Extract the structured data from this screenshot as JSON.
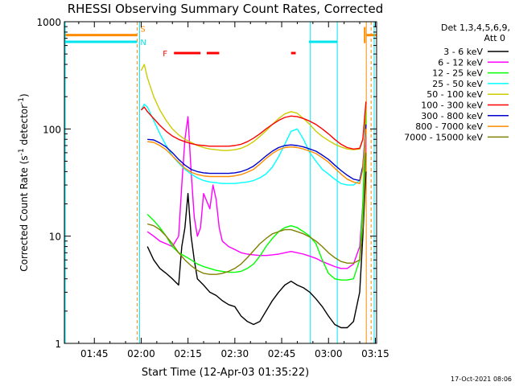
{
  "chart_data": {
    "type": "line",
    "title": "RHESSI Observing Summary Count Rates, Corrected",
    "xlabel": "Start Time (12-Apr-03 01:35:22)",
    "ylabel": "Corrected Count Rate (s",
    "ylabel_sup1": "-1",
    "ylabel_mid": " detector",
    "ylabel_sup2": "-1",
    "ylabel_end": ")",
    "yscale": "log",
    "ylim": [
      1,
      1000
    ],
    "xlim_minutes": [
      95.4,
      195.4
    ],
    "x_unit": "minutes after 00:00 UT on 12-Apr-03",
    "x_ticks": [
      {
        "value": 105,
        "label": "01:45"
      },
      {
        "value": 120,
        "label": "02:00"
      },
      {
        "value": 135,
        "label": "02:15"
      },
      {
        "value": 150,
        "label": "02:30"
      },
      {
        "value": 165,
        "label": "02:45"
      },
      {
        "value": 180,
        "label": "03:00"
      },
      {
        "value": 195,
        "label": "03:15"
      }
    ],
    "y_ticks": [
      {
        "value": 1,
        "label": "1"
      },
      {
        "value": 10,
        "label": "10"
      },
      {
        "value": 100,
        "label": "100"
      },
      {
        "value": 1000,
        "label": "1000"
      }
    ],
    "legend_title": "Det 1,3,4,5,6,9,",
    "legend_subtitle": "Att 0",
    "legend_position": "right",
    "timestamp": "17-Oct-2021 08:06",
    "flags": {
      "saa_label": "S",
      "night_label": "N",
      "flare_label": "F",
      "saa_color": "#ff8c00",
      "night_color": "#00e5ee",
      "flare_color": "#ff0000",
      "saa_ends": [
        118.7,
        192.1
      ],
      "night_ends": [
        118.7,
        173.7
      ],
      "night_bar_end": 174.2,
      "night_boundary": 182.8,
      "saa_start_again": 192.1,
      "night_bar_value": 650,
      "saa_bar_value": 750,
      "flare_value": 510,
      "flare_intervals": [
        [
          130.5,
          139.0
        ],
        [
          141.0,
          145.0
        ],
        [
          168.0,
          169.5
        ]
      ]
    },
    "series": [
      {
        "name": "3 - 6 keV",
        "color": "#000000",
        "x": [
          122,
          124,
          126,
          128,
          130,
          132,
          133,
          134,
          135,
          136,
          137,
          138,
          140,
          142,
          144,
          146,
          148,
          150,
          152,
          154,
          156,
          158,
          160,
          162,
          164,
          166,
          168,
          170,
          172,
          174,
          176,
          178,
          180,
          182,
          184,
          186,
          188,
          190,
          191,
          192
        ],
        "y": [
          8,
          6,
          5,
          4.5,
          4,
          3.5,
          8,
          12,
          25,
          10,
          6,
          4,
          3.5,
          3,
          2.8,
          2.5,
          2.3,
          2.2,
          1.8,
          1.6,
          1.5,
          1.6,
          2,
          2.5,
          3,
          3.5,
          3.8,
          3.5,
          3.3,
          3,
          2.6,
          2.2,
          1.8,
          1.5,
          1.4,
          1.4,
          1.6,
          3,
          10,
          40
        ]
      },
      {
        "name": "6 - 12 keV",
        "color": "#ff00ff",
        "x": [
          122,
          124,
          126,
          128,
          130,
          132,
          133,
          134,
          135,
          136,
          137,
          138,
          139,
          140,
          142,
          143,
          144,
          145,
          146,
          148,
          150,
          152,
          154,
          156,
          158,
          160,
          162,
          164,
          166,
          168,
          170,
          172,
          174,
          176,
          178,
          180,
          182,
          184,
          186,
          188,
          190,
          191,
          192
        ],
        "y": [
          11,
          10,
          9,
          8.5,
          8,
          10,
          30,
          80,
          130,
          40,
          15,
          10,
          12,
          25,
          18,
          30,
          22,
          12,
          9,
          8,
          7.5,
          7,
          6.8,
          6.7,
          6.6,
          6.6,
          6.7,
          6.8,
          7,
          7.2,
          7,
          6.8,
          6.5,
          6.2,
          5.8,
          5.5,
          5.2,
          5,
          5,
          5.5,
          8,
          20,
          90
        ]
      },
      {
        "name": "12 - 25 keV",
        "color": "#00ff00",
        "x": [
          122,
          124,
          126,
          128,
          130,
          132,
          134,
          136,
          138,
          140,
          142,
          144,
          146,
          148,
          150,
          152,
          154,
          156,
          158,
          160,
          162,
          164,
          166,
          168,
          170,
          172,
          174,
          176,
          178,
          180,
          182,
          184,
          186,
          188,
          190,
          191,
          192
        ],
        "y": [
          16,
          14,
          12,
          10,
          8,
          7,
          6.5,
          6,
          5.5,
          5.2,
          5,
          4.8,
          4.7,
          4.6,
          4.6,
          4.7,
          5,
          5.5,
          6.5,
          8,
          9.5,
          11,
          12,
          12.5,
          12,
          11,
          10,
          8.5,
          6,
          4.5,
          4,
          3.9,
          3.9,
          4,
          6,
          20,
          150
        ]
      },
      {
        "name": "25 - 50 keV",
        "color": "#00ffff",
        "x": [
          120,
          121,
          122,
          124,
          126,
          128,
          130,
          132,
          134,
          136,
          138,
          140,
          142,
          144,
          146,
          148,
          150,
          152,
          154,
          156,
          158,
          160,
          162,
          164,
          166,
          168,
          170,
          172,
          174,
          176,
          178,
          180,
          182,
          184,
          186,
          188,
          190,
          191,
          192
        ],
        "y": [
          150,
          170,
          160,
          120,
          90,
          70,
          56,
          48,
          42,
          38,
          35,
          33,
          32,
          31.5,
          31,
          31,
          31,
          31.5,
          32,
          33,
          35,
          38,
          44,
          55,
          72,
          95,
          100,
          80,
          60,
          50,
          42,
          38,
          34,
          31,
          30,
          30,
          33,
          45,
          90
        ]
      },
      {
        "name": "50 - 100 keV",
        "color": "#cccc00",
        "x": [
          120,
          121,
          122,
          124,
          126,
          128,
          130,
          132,
          134,
          136,
          138,
          140,
          142,
          144,
          146,
          148,
          150,
          152,
          154,
          156,
          158,
          160,
          162,
          164,
          166,
          168,
          170,
          172,
          174,
          176,
          178,
          180,
          182,
          184,
          186,
          188,
          190,
          191,
          192
        ],
        "y": [
          350,
          400,
          300,
          200,
          150,
          120,
          100,
          88,
          80,
          75,
          70,
          67,
          65,
          64,
          63,
          63,
          64,
          66,
          70,
          76,
          85,
          96,
          110,
          125,
          138,
          145,
          140,
          125,
          110,
          95,
          85,
          78,
          72,
          68,
          65,
          64,
          65,
          80,
          150
        ]
      },
      {
        "name": "100 - 300 keV",
        "color": "#ff0000",
        "x": [
          120,
          121,
          122,
          124,
          126,
          128,
          130,
          132,
          134,
          136,
          138,
          140,
          142,
          144,
          146,
          148,
          150,
          152,
          154,
          156,
          158,
          160,
          162,
          164,
          166,
          168,
          170,
          172,
          174,
          176,
          178,
          180,
          182,
          184,
          186,
          188,
          190,
          191,
          192
        ],
        "y": [
          150,
          160,
          145,
          125,
          108,
          95,
          86,
          80,
          76,
          73,
          71,
          70,
          69,
          69,
          69,
          69,
          70,
          72,
          76,
          82,
          90,
          100,
          110,
          120,
          128,
          132,
          130,
          125,
          118,
          110,
          100,
          90,
          80,
          72,
          67,
          65,
          66,
          80,
          180
        ]
      },
      {
        "name": "300 - 800 keV",
        "color": "#0000cc",
        "x": [
          122,
          124,
          126,
          128,
          130,
          132,
          134,
          136,
          138,
          140,
          142,
          144,
          146,
          148,
          150,
          152,
          154,
          156,
          158,
          160,
          162,
          164,
          166,
          168,
          170,
          172,
          174,
          176,
          178,
          180,
          182,
          184,
          186,
          188,
          190,
          191,
          192
        ],
        "y": [
          80,
          79,
          74,
          68,
          60,
          52,
          46,
          42,
          40,
          39,
          38.5,
          38.5,
          38.5,
          38.5,
          39,
          40,
          42,
          45,
          50,
          56,
          62,
          67,
          70,
          71,
          70,
          68,
          65,
          62,
          57,
          52,
          46,
          41,
          37,
          34,
          33,
          45,
          110
        ]
      },
      {
        "name": "800 - 7000 keV",
        "color": "#ff8c00",
        "x": [
          122,
          124,
          126,
          128,
          130,
          132,
          134,
          136,
          138,
          140,
          142,
          144,
          146,
          148,
          150,
          152,
          154,
          156,
          158,
          160,
          162,
          164,
          166,
          168,
          170,
          172,
          174,
          176,
          178,
          180,
          182,
          184,
          186,
          188,
          190,
          191,
          192
        ],
        "y": [
          76,
          75,
          70,
          64,
          56,
          49,
          43,
          39.5,
          37.5,
          36.5,
          36,
          36,
          36,
          36,
          36.5,
          37.5,
          39.5,
          42,
          47,
          53,
          59,
          64,
          67,
          68,
          67,
          65,
          62,
          59,
          54,
          49,
          43,
          38,
          34,
          32,
          31,
          42,
          100
        ]
      },
      {
        "name": "7000 - 15000 keV",
        "color": "#808000",
        "x": [
          122,
          124,
          126,
          128,
          130,
          132,
          134,
          136,
          138,
          140,
          142,
          144,
          146,
          148,
          150,
          152,
          154,
          156,
          158,
          160,
          162,
          164,
          166,
          168,
          170,
          172,
          174,
          176,
          178,
          180,
          182,
          184,
          186,
          188,
          190,
          191,
          192
        ],
        "y": [
          13,
          12.5,
          11.5,
          10,
          8.5,
          7,
          6,
          5.3,
          4.8,
          4.5,
          4.4,
          4.4,
          4.5,
          4.7,
          5,
          5.5,
          6.3,
          7.3,
          8.5,
          9.5,
          10.5,
          11,
          11.5,
          11.5,
          11,
          10.5,
          9.8,
          9,
          8,
          7,
          6.3,
          5.8,
          5.6,
          5.6,
          6,
          12,
          60
        ]
      }
    ]
  }
}
